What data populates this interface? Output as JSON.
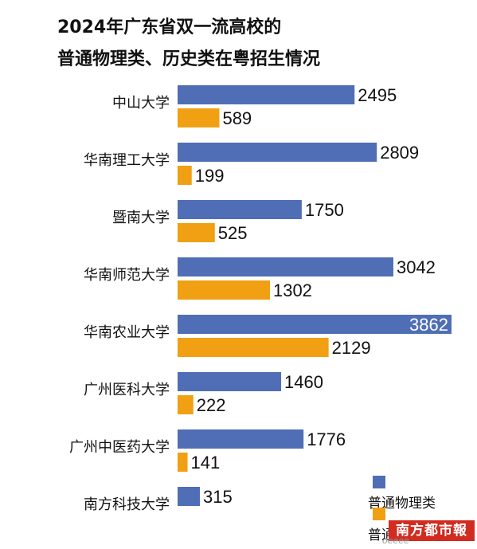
{
  "chart_data": {
    "type": "bar",
    "orientation": "horizontal",
    "title": "2024年广东省双一流高校的",
    "subtitle": "普通物理类、历史类在粤招生情况",
    "categories": [
      "中山大学",
      "华南理工大学",
      "暨南大学",
      "华南师范大学",
      "华南农业大学",
      "广州医科大学",
      "广州中医药大学",
      "南方科技大学"
    ],
    "series": [
      {
        "name": "普通物理类",
        "color": "#4f6eb5",
        "values": [
          2495,
          2809,
          1750,
          3042,
          3862,
          1460,
          1776,
          315
        ]
      },
      {
        "name": "普通历史类",
        "color": "#f0a012",
        "values": [
          589,
          199,
          525,
          1302,
          2129,
          222,
          141,
          null
        ]
      }
    ],
    "xlim": [
      0,
      3862
    ],
    "grid": false,
    "legend": "bottom-right"
  },
  "legend": {
    "visible_text_2": "普通历"
  },
  "watermark": {
    "brand": "南方都市報",
    "site": "oeeee"
  }
}
